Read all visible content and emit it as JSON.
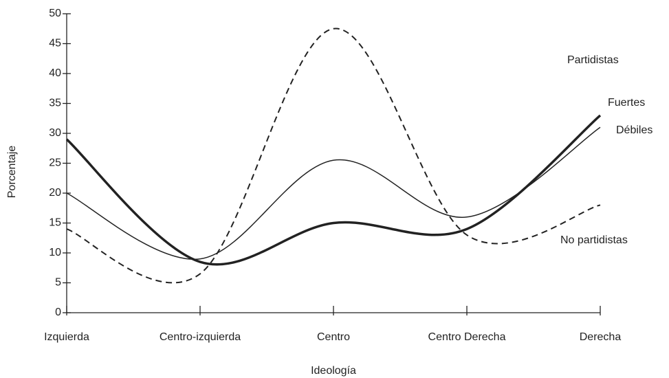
{
  "chart_data": {
    "type": "line",
    "x_label": "Ideología",
    "y_label": "Porcentaje",
    "annotation": "Partidistas",
    "categories": [
      "Izquierda",
      "Centro-izquierda",
      "Centro",
      "Centro Derecha",
      "Derecha"
    ],
    "series": [
      {
        "name": "Fuertes",
        "color": "#222222",
        "line_width": 3.5,
        "line_style": "solid",
        "values": [
          29,
          8.5,
          15,
          14,
          33
        ]
      },
      {
        "name": "Débiles",
        "color": "#222222",
        "line_width": 1.5,
        "line_style": "solid",
        "values": [
          20,
          9,
          25.5,
          16,
          31
        ]
      },
      {
        "name": "No partidistas",
        "color": "#222222",
        "line_width": 2,
        "line_style": "dashed",
        "values": [
          14,
          6.5,
          47.5,
          13,
          18
        ]
      }
    ],
    "ylim": [
      0,
      50
    ],
    "yticks": [
      0,
      5,
      10,
      15,
      20,
      25,
      30,
      35,
      40,
      45,
      50
    ],
    "grid": false
  }
}
